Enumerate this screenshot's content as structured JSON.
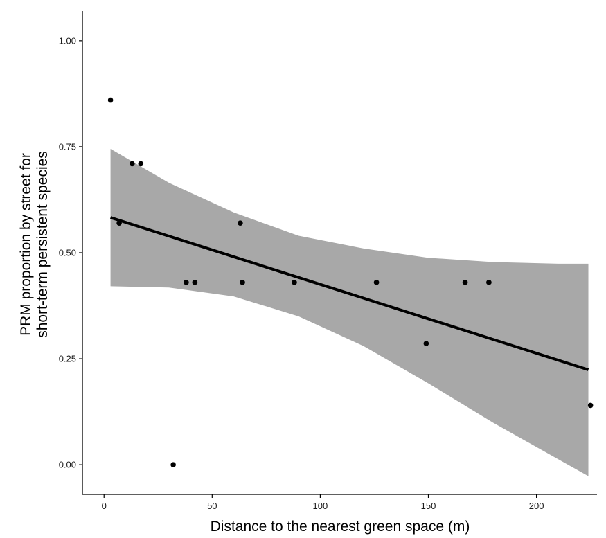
{
  "chart_data": {
    "type": "scatter",
    "title": "",
    "xlabel": "Distance to the nearest green space (m)",
    "ylabel_lines": [
      "PRM proportion by street for",
      "short-term persistent species"
    ],
    "xlim": [
      -10,
      228
    ],
    "ylim": [
      -0.07,
      1.07
    ],
    "grid": false,
    "x_ticks": [
      0,
      50,
      100,
      150,
      200
    ],
    "x_tick_labels": [
      "0",
      "50",
      "100",
      "150",
      "200"
    ],
    "y_ticks": [
      0,
      0.25,
      0.5,
      0.75,
      1.0
    ],
    "y_tick_labels": [
      "0.00",
      "0.25",
      "0.50",
      "0.75",
      "1.00"
    ],
    "points": [
      {
        "x": 3,
        "y": 0.86
      },
      {
        "x": 7,
        "y": 0.57
      },
      {
        "x": 13,
        "y": 0.71
      },
      {
        "x": 17,
        "y": 0.71
      },
      {
        "x": 32,
        "y": 0.0
      },
      {
        "x": 38,
        "y": 0.43
      },
      {
        "x": 42,
        "y": 0.43
      },
      {
        "x": 63,
        "y": 0.57
      },
      {
        "x": 64,
        "y": 0.43
      },
      {
        "x": 88,
        "y": 0.43
      },
      {
        "x": 126,
        "y": 0.43
      },
      {
        "x": 149,
        "y": 0.286
      },
      {
        "x": 167,
        "y": 0.43
      },
      {
        "x": 178,
        "y": 0.43
      },
      {
        "x": 225,
        "y": 0.14
      }
    ],
    "fit_line": {
      "x": [
        3,
        224
      ],
      "y": [
        0.583,
        0.224
      ]
    },
    "confidence_band": {
      "x": [
        3,
        30,
        60,
        90,
        120,
        150,
        180,
        210,
        224
      ],
      "upper": [
        0.745,
        0.665,
        0.595,
        0.54,
        0.51,
        0.488,
        0.478,
        0.474,
        0.474
      ],
      "lower": [
        0.421,
        0.418,
        0.397,
        0.35,
        0.28,
        0.192,
        0.099,
        0.013,
        -0.027
      ]
    },
    "colors": {
      "points": "#000000",
      "fit_line": "#000000",
      "band": "#a8a8a8",
      "axis": "#000000"
    }
  }
}
